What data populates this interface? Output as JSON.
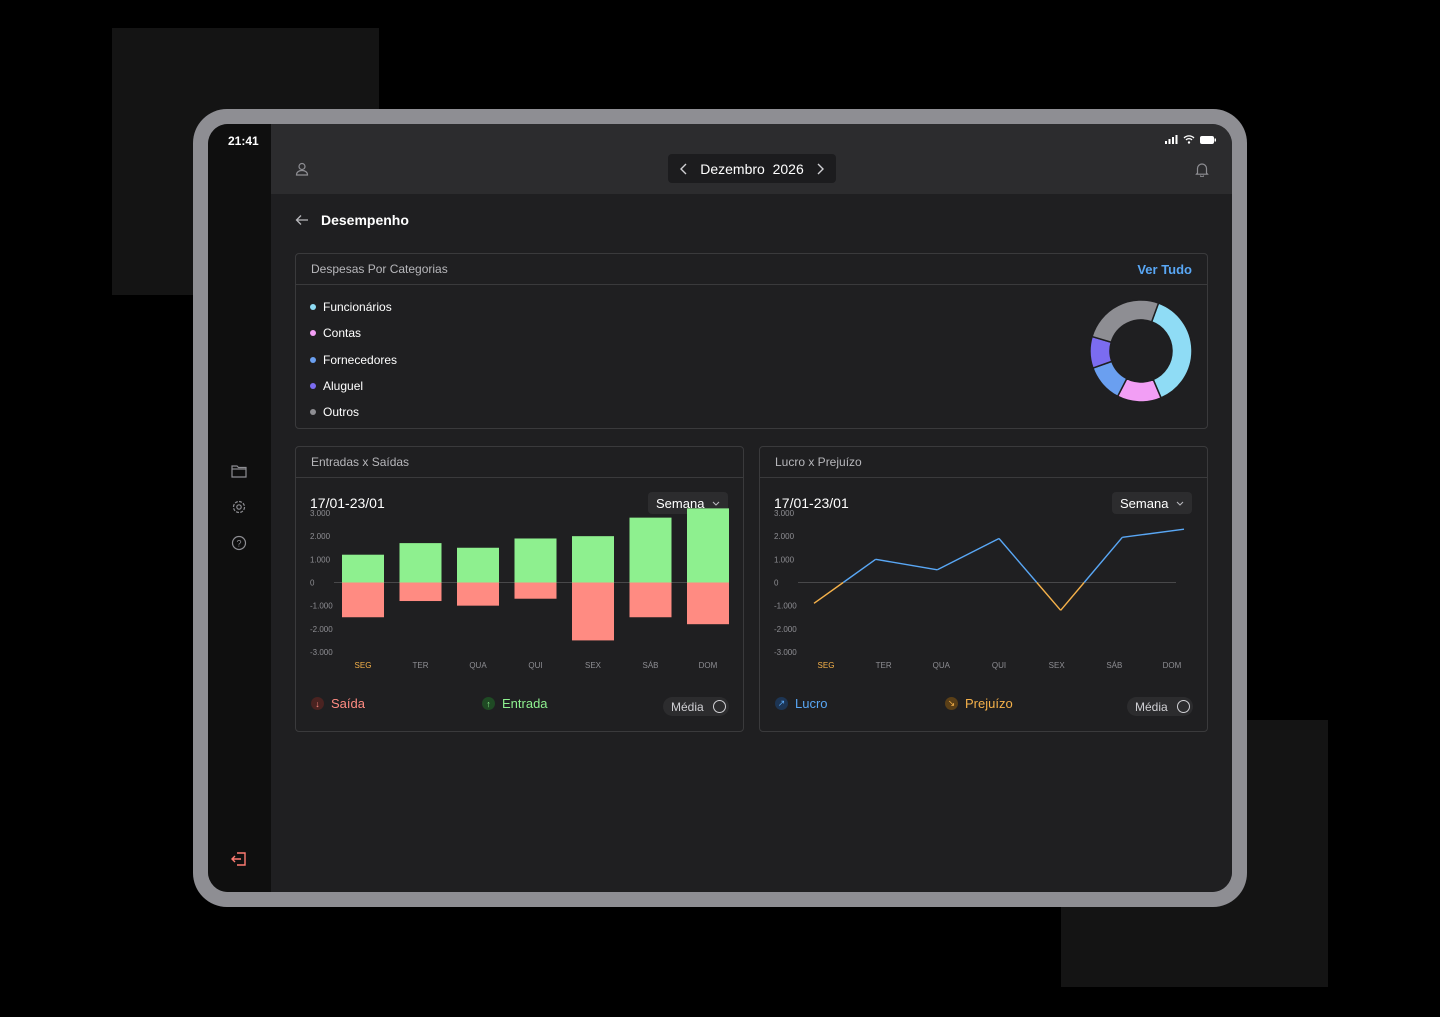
{
  "status": {
    "time": "21:41"
  },
  "header": {
    "month": "Dezembro",
    "year": "2026"
  },
  "page": {
    "title": "Desempenho"
  },
  "categories_card": {
    "title": "Despesas Por Categorias",
    "link": "Ver Tudo",
    "items": [
      {
        "label": "Funcionários",
        "color": "#8fdcf5",
        "value": 38
      },
      {
        "label": "Contas",
        "color": "#f29ef5",
        "value": 14
      },
      {
        "label": "Fornecedores",
        "color": "#6a9ff0",
        "value": 12
      },
      {
        "label": "Aluguel",
        "color": "#7b6cf0",
        "value": 10
      },
      {
        "label": "Outros",
        "color": "#8e8e93",
        "value": 26
      }
    ]
  },
  "flow_card": {
    "title": "Entradas x Saídas",
    "range": "17/01-23/01",
    "period": "Semana",
    "legend_out": "Saída",
    "legend_in": "Entrada",
    "media": "Média"
  },
  "profit_card": {
    "title": "Lucro x Prejuízo",
    "range": "17/01-23/01",
    "period": "Semana",
    "legend_profit": "Lucro",
    "legend_loss": "Prejuízo",
    "media": "Média"
  },
  "colors": {
    "entrada": "#8ef08f",
    "saida": "#ff8b82",
    "lucro": "#59a7f5",
    "prejuizo": "#f5b14a",
    "accent_day": "#f5b14a"
  },
  "chart_data": [
    {
      "type": "bar",
      "categories": [
        "SEG",
        "TER",
        "QUA",
        "QUI",
        "SEX",
        "SÁB",
        "DOM"
      ],
      "yticks": [
        "3.000",
        "2.000",
        "1.000",
        "0",
        "-1.000",
        "-2.000",
        "-3.000"
      ],
      "ylim": [
        -3000,
        3000
      ],
      "series": [
        {
          "name": "Entrada",
          "values": [
            1200,
            1700,
            1500,
            1900,
            2000,
            2800,
            3200
          ]
        },
        {
          "name": "Saída",
          "values": [
            -1500,
            -800,
            -1000,
            -700,
            -2500,
            -1500,
            -1800
          ]
        }
      ]
    },
    {
      "type": "line",
      "categories": [
        "SEG",
        "TER",
        "QUA",
        "QUI",
        "SEX",
        "SÁB",
        "DOM"
      ],
      "yticks": [
        "3.000",
        "2.000",
        "1.000",
        "0",
        "-1.000",
        "-2.000",
        "-3.000"
      ],
      "ylim": [
        -3000,
        3000
      ],
      "series": [
        {
          "name": "Lucro",
          "values": [
            -900,
            1000,
            550,
            1900,
            -1200,
            1950,
            2300
          ]
        }
      ]
    }
  ]
}
